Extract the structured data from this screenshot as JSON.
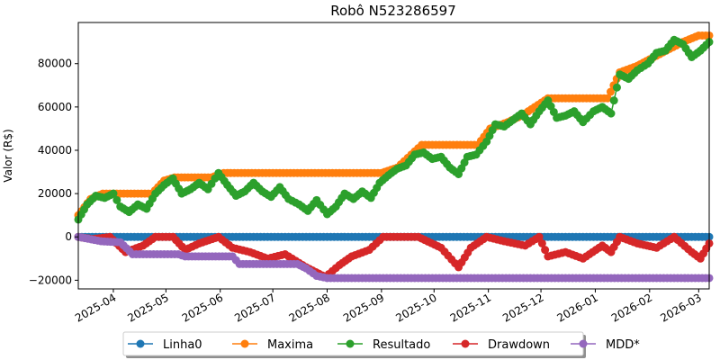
{
  "chart_data": {
    "type": "line",
    "title": "Robô N523286597",
    "xlabel": "",
    "ylabel": "Valor (R$)",
    "xlim": [
      "2025-03-12",
      "2026-03-07"
    ],
    "ylim": [
      -24000,
      99000
    ],
    "grid": false,
    "legend_position": "bottom-center",
    "x_ticks": [
      "2025-04",
      "2025-05",
      "2025-06",
      "2025-07",
      "2025-08",
      "2025-09",
      "2025-10",
      "2025-11",
      "2025-12",
      "2026-01",
      "2026-02",
      "2026-03"
    ],
    "y_ticks": [
      "−20000",
      "0",
      "20000",
      "40000",
      "60000",
      "80000"
    ],
    "y_tick_values": [
      -20000,
      0,
      20000,
      40000,
      60000,
      80000
    ],
    "series": [
      {
        "name": "Linha0",
        "color": "#1f77b4",
        "points": [
          [
            "2025-03-12",
            0
          ],
          [
            "2026-03-07",
            0
          ]
        ]
      },
      {
        "name": "Maxima",
        "color": "#ff7f0e",
        "points": [
          [
            "2025-03-12",
            10000
          ],
          [
            "2025-03-19",
            17500
          ],
          [
            "2025-03-26",
            20000
          ],
          [
            "2025-04-23",
            20000
          ],
          [
            "2025-04-30",
            26000
          ],
          [
            "2025-05-06",
            27500
          ],
          [
            "2025-05-27",
            27500
          ],
          [
            "2025-06-03",
            29500
          ],
          [
            "2025-09-01",
            29500
          ],
          [
            "2025-09-10",
            32000
          ],
          [
            "2025-09-24",
            42500
          ],
          [
            "2025-10-26",
            42500
          ],
          [
            "2025-11-02",
            50000
          ],
          [
            "2025-11-12",
            53000
          ],
          [
            "2025-11-20",
            56000
          ],
          [
            "2025-12-05",
            64000
          ],
          [
            "2026-01-08",
            64000
          ],
          [
            "2026-01-15",
            76000
          ],
          [
            "2026-01-25",
            79000
          ],
          [
            "2026-02-01",
            82000
          ],
          [
            "2026-02-20",
            90000
          ],
          [
            "2026-03-01",
            93000
          ],
          [
            "2026-03-07",
            93000
          ]
        ]
      },
      {
        "name": "Resultado",
        "color": "#2ca02c",
        "points": [
          [
            "2025-03-12",
            8000
          ],
          [
            "2025-03-17",
            15000
          ],
          [
            "2025-03-22",
            19000
          ],
          [
            "2025-03-27",
            18000
          ],
          [
            "2025-04-01",
            20000
          ],
          [
            "2025-04-05",
            14000
          ],
          [
            "2025-04-10",
            11500
          ],
          [
            "2025-04-15",
            15000
          ],
          [
            "2025-04-20",
            13000
          ],
          [
            "2025-04-25",
            20000
          ],
          [
            "2025-04-30",
            24000
          ],
          [
            "2025-05-05",
            27000
          ],
          [
            "2025-05-10",
            20000
          ],
          [
            "2025-05-15",
            22000
          ],
          [
            "2025-05-20",
            25000
          ],
          [
            "2025-05-25",
            22000
          ],
          [
            "2025-05-31",
            29500
          ],
          [
            "2025-06-05",
            24000
          ],
          [
            "2025-06-10",
            19000
          ],
          [
            "2025-06-15",
            21000
          ],
          [
            "2025-06-20",
            25000
          ],
          [
            "2025-06-25",
            21000
          ],
          [
            "2025-06-30",
            18500
          ],
          [
            "2025-07-05",
            23000
          ],
          [
            "2025-07-10",
            17500
          ],
          [
            "2025-07-16",
            15000
          ],
          [
            "2025-07-21",
            12000
          ],
          [
            "2025-07-26",
            17000
          ],
          [
            "2025-08-01",
            10500
          ],
          [
            "2025-08-06",
            14000
          ],
          [
            "2025-08-11",
            20000
          ],
          [
            "2025-08-16",
            17500
          ],
          [
            "2025-08-21",
            21000
          ],
          [
            "2025-08-26",
            18000
          ],
          [
            "2025-08-31",
            25000
          ],
          [
            "2025-09-05",
            28500
          ],
          [
            "2025-09-10",
            31500
          ],
          [
            "2025-09-15",
            33000
          ],
          [
            "2025-09-20",
            38000
          ],
          [
            "2025-09-25",
            39000
          ],
          [
            "2025-09-30",
            36000
          ],
          [
            "2025-10-05",
            37000
          ],
          [
            "2025-10-10",
            32000
          ],
          [
            "2025-10-15",
            29000
          ],
          [
            "2025-10-20",
            37000
          ],
          [
            "2025-10-25",
            38000
          ],
          [
            "2025-10-31",
            44000
          ],
          [
            "2025-11-05",
            52000
          ],
          [
            "2025-11-10",
            51000
          ],
          [
            "2025-11-15",
            54000
          ],
          [
            "2025-11-20",
            57000
          ],
          [
            "2025-11-25",
            52000
          ],
          [
            "2025-11-30",
            58000
          ],
          [
            "2025-12-05",
            63000
          ],
          [
            "2025-12-10",
            55000
          ],
          [
            "2025-12-15",
            56000
          ],
          [
            "2025-12-20",
            58000
          ],
          [
            "2025-12-25",
            53000
          ],
          [
            "2025-12-31",
            58000
          ],
          [
            "2026-01-05",
            60000
          ],
          [
            "2026-01-10",
            57000
          ],
          [
            "2026-01-15",
            75000
          ],
          [
            "2026-01-20",
            73000
          ],
          [
            "2026-01-25",
            77000
          ],
          [
            "2026-01-31",
            80000
          ],
          [
            "2026-02-05",
            85000
          ],
          [
            "2026-02-10",
            86000
          ],
          [
            "2026-02-15",
            91000
          ],
          [
            "2026-02-20",
            89000
          ],
          [
            "2026-02-25",
            83000
          ],
          [
            "2026-03-02",
            86000
          ],
          [
            "2026-03-07",
            90000
          ]
        ]
      },
      {
        "name": "Drawdown",
        "color": "#d62728",
        "points": [
          [
            "2025-03-12",
            0
          ],
          [
            "2025-03-20",
            -1000
          ],
          [
            "2025-03-30",
            0
          ],
          [
            "2025-04-08",
            -7000
          ],
          [
            "2025-04-18",
            -4000
          ],
          [
            "2025-04-25",
            0
          ],
          [
            "2025-05-05",
            0
          ],
          [
            "2025-05-12",
            -6000
          ],
          [
            "2025-05-20",
            -3000
          ],
          [
            "2025-05-31",
            0
          ],
          [
            "2025-06-08",
            -5000
          ],
          [
            "2025-06-18",
            -7000
          ],
          [
            "2025-06-28",
            -10000
          ],
          [
            "2025-07-08",
            -8000
          ],
          [
            "2025-07-20",
            -14000
          ],
          [
            "2025-07-31",
            -18500
          ],
          [
            "2025-08-08",
            -13000
          ],
          [
            "2025-08-15",
            -9000
          ],
          [
            "2025-08-25",
            -6000
          ],
          [
            "2025-09-02",
            0
          ],
          [
            "2025-09-10",
            0
          ],
          [
            "2025-09-22",
            0
          ],
          [
            "2025-10-05",
            -5000
          ],
          [
            "2025-10-15",
            -14000
          ],
          [
            "2025-10-22",
            -5000
          ],
          [
            "2025-10-31",
            0
          ],
          [
            "2025-11-10",
            -2000
          ],
          [
            "2025-11-22",
            -4000
          ],
          [
            "2025-11-30",
            0
          ],
          [
            "2025-12-05",
            -9000
          ],
          [
            "2025-12-15",
            -7000
          ],
          [
            "2025-12-25",
            -10000
          ],
          [
            "2026-01-05",
            -4000
          ],
          [
            "2026-01-10",
            -7000
          ],
          [
            "2026-01-15",
            0
          ],
          [
            "2026-01-25",
            -3000
          ],
          [
            "2026-02-05",
            -5000
          ],
          [
            "2026-02-15",
            0
          ],
          [
            "2026-02-25",
            -7000
          ],
          [
            "2026-03-02",
            -10000
          ],
          [
            "2026-03-07",
            -3000
          ]
        ]
      },
      {
        "name": "MDD*",
        "color": "#9467bd",
        "points": [
          [
            "2025-03-12",
            0
          ],
          [
            "2025-03-25",
            -2000
          ],
          [
            "2025-04-05",
            -2500
          ],
          [
            "2025-04-12",
            -8000
          ],
          [
            "2025-05-08",
            -8000
          ],
          [
            "2025-05-12",
            -9000
          ],
          [
            "2025-06-08",
            -9000
          ],
          [
            "2025-06-12",
            -12500
          ],
          [
            "2025-07-15",
            -12500
          ],
          [
            "2025-07-20",
            -14500
          ],
          [
            "2025-07-26",
            -18000
          ],
          [
            "2025-08-01",
            -19000
          ],
          [
            "2026-03-07",
            -19000
          ]
        ]
      }
    ]
  }
}
